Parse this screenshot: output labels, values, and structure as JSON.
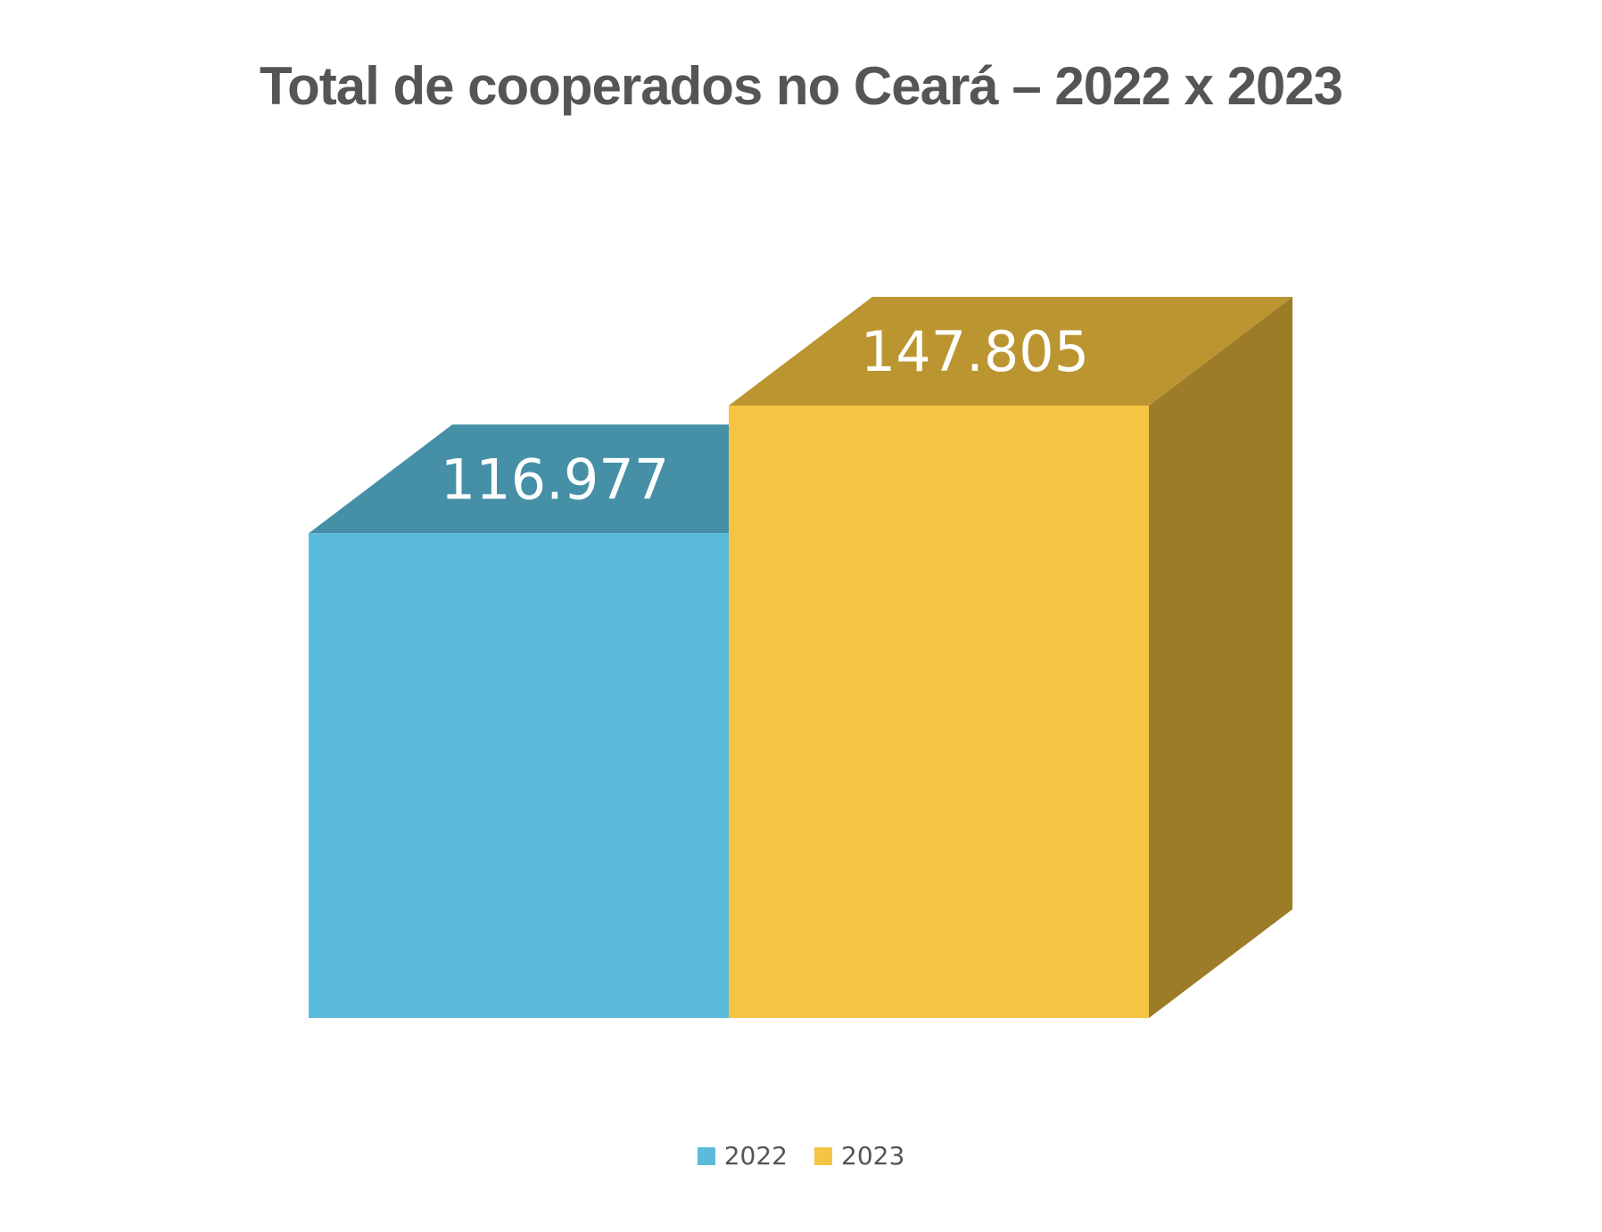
{
  "chart_data": {
    "type": "bar",
    "title": "Total de cooperados no Ceará – 2022 x 2023",
    "categories": [
      "2022",
      "2023"
    ],
    "values": [
      116977,
      147805
    ],
    "labels": [
      "116.977",
      "147.805"
    ],
    "colors": [
      "#5bbbdb",
      "#f5c443"
    ],
    "top_colors": [
      "#4590a7",
      "#bb9530"
    ],
    "side_colors": [
      "#3a7a8e",
      "#9c7c27"
    ],
    "legend": [
      {
        "label": "2022",
        "color": "#5bbbdb"
      },
      {
        "label": "2023",
        "color": "#f5c443"
      }
    ],
    "legend_position": "bottom",
    "grid": false
  }
}
